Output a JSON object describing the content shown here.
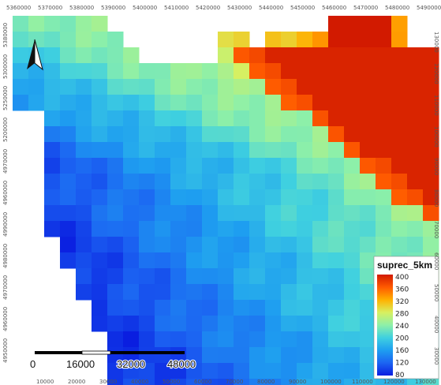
{
  "map": {
    "top_axis_labels": [
      "5360000",
      "5370000",
      "5380000",
      "5390000",
      "5400000",
      "5410000",
      "5420000",
      "5430000",
      "5440000",
      "5450000",
      "5460000",
      "5470000",
      "5480000",
      "5490000"
    ],
    "bottom_axis_labels": [
      "10000",
      "20000",
      "30000",
      "40000",
      "50000",
      "60000",
      "70000",
      "80000",
      "90000",
      "100000",
      "110000",
      "120000",
      "130000"
    ],
    "left_axis_labels": [
      "5380000",
      "5300000",
      "5250000",
      "5200000",
      "4970000",
      "4960000",
      "4990000",
      "4980000",
      "4970000",
      "4960000",
      "4950000"
    ],
    "right_axis_labels": [
      "130000",
      "120000",
      "110000",
      "100000",
      "90000",
      "80000",
      "70000",
      "60000",
      "50000",
      "40000",
      "30000"
    ],
    "north_arrow_icon": "north-arrow-icon",
    "scale_bar": {
      "labels": [
        "0",
        "16000",
        "32000",
        "48000"
      ],
      "values": [
        0,
        16000,
        32000,
        48000
      ]
    },
    "legend": {
      "title": "suprec_5km",
      "ticks": [
        "400",
        "360",
        "320",
        "280",
        "240",
        "200",
        "160",
        "120",
        "80"
      ],
      "min": 80,
      "max": 400,
      "colormap": [
        "#0a1ee0",
        "#1c64f2",
        "#1e9ef0",
        "#3fd0e0",
        "#8ef0a8",
        "#d8f060",
        "#ffb000",
        "#ff5a00",
        "#d21a00"
      ]
    }
  }
}
